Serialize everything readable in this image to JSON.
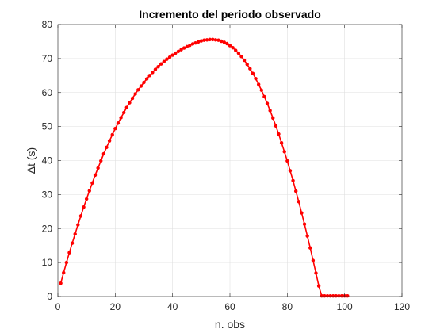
{
  "chart_data": {
    "type": "line",
    "title": "Incremento del periodo observado",
    "xlabel": "n. obs",
    "ylabel": "Δt (s)",
    "xlim": [
      0,
      120
    ],
    "ylim": [
      0,
      80
    ],
    "xticks": [
      0,
      20,
      40,
      60,
      80,
      100,
      120
    ],
    "yticks": [
      0,
      10,
      20,
      30,
      40,
      50,
      60,
      70,
      80
    ],
    "grid": true,
    "series": [
      {
        "color": "#ff0000",
        "marker": "dot",
        "x": [
          1,
          2,
          3,
          4,
          5,
          6,
          7,
          8,
          9,
          10,
          11,
          12,
          13,
          14,
          15,
          16,
          17,
          18,
          19,
          20,
          21,
          22,
          23,
          24,
          25,
          26,
          27,
          28,
          29,
          30,
          31,
          32,
          33,
          34,
          35,
          36,
          37,
          38,
          39,
          40,
          41,
          42,
          43,
          44,
          45,
          46,
          47,
          48,
          49,
          50,
          51,
          52,
          53,
          54,
          55,
          56,
          57,
          58,
          59,
          60,
          61,
          62,
          63,
          64,
          65,
          66,
          67,
          68,
          69,
          70,
          71,
          72,
          73,
          74,
          75,
          76,
          77,
          78,
          79,
          80,
          81,
          82,
          83,
          84,
          85,
          86,
          87,
          88,
          89,
          90,
          91,
          92,
          93,
          94,
          95,
          96,
          97,
          98,
          99,
          100,
          101
        ],
        "y": [
          3.92,
          7.0,
          10.0,
          12.9,
          15.7,
          18.4,
          21.1,
          23.7,
          26.3,
          28.7,
          31.1,
          33.4,
          35.7,
          37.8,
          39.9,
          42.0,
          43.9,
          45.8,
          47.6,
          49.4,
          51.0,
          52.6,
          54.1,
          55.6,
          57.0,
          58.3,
          59.6,
          60.8,
          61.9,
          63.0,
          64.0,
          65.0,
          65.9,
          66.8,
          67.6,
          68.4,
          69.1,
          69.8,
          70.4,
          71.0,
          71.6,
          72.1,
          72.6,
          73.1,
          73.5,
          73.9,
          74.3,
          74.6,
          74.9,
          75.2,
          75.4,
          75.5,
          75.6,
          75.6,
          75.5,
          75.4,
          75.1,
          74.8,
          74.4,
          73.8,
          73.2,
          72.4,
          71.6,
          70.6,
          69.5,
          68.3,
          67.0,
          65.6,
          64.1,
          62.4,
          60.7,
          58.8,
          56.8,
          54.7,
          52.5,
          50.2,
          47.8,
          45.2,
          42.6,
          39.9,
          37.0,
          34.1,
          31.0,
          27.9,
          24.6,
          21.3,
          17.8,
          14.3,
          10.6,
          6.9,
          3.1,
          0.2,
          0.2,
          0.2,
          0.2,
          0.2,
          0.2,
          0.2,
          0.2,
          0.2,
          0.2
        ]
      }
    ]
  }
}
